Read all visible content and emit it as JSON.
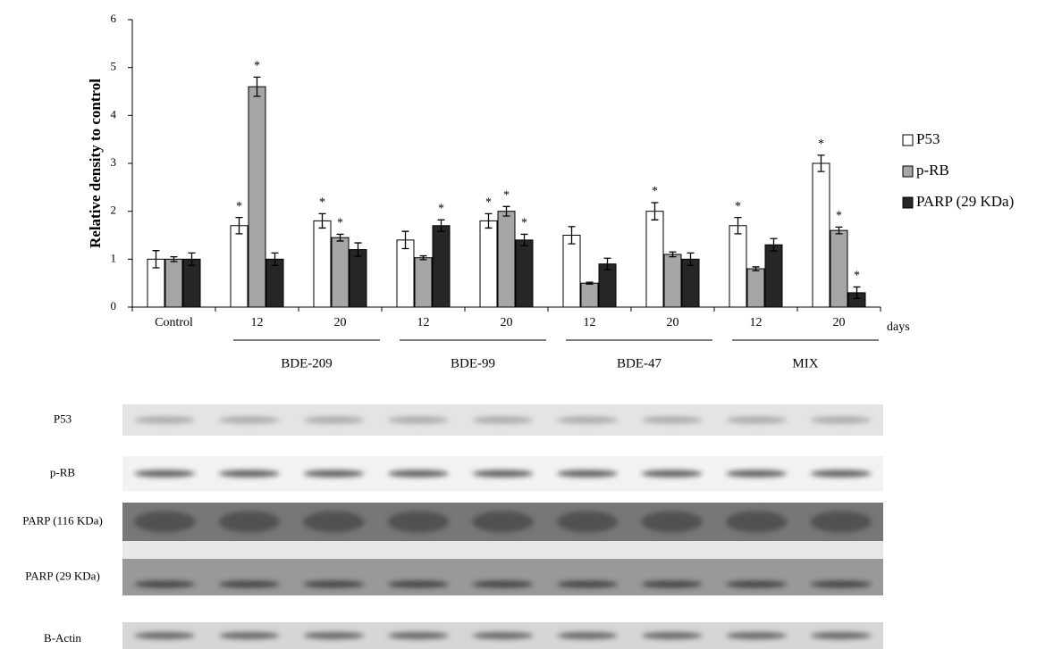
{
  "chart_data": {
    "type": "bar",
    "y_label": "Relative density to control",
    "x_unit": "days",
    "categories": [
      "Control",
      "12",
      "20",
      "12",
      "20",
      "12",
      "20",
      "12",
      "20"
    ],
    "groups": [
      null,
      "BDE-209",
      "BDE-209",
      "BDE-99",
      "BDE-99",
      "BDE-47",
      "BDE-47",
      "MIX",
      "MIX"
    ],
    "ylim": [
      0,
      6
    ],
    "yticks": [
      0,
      1,
      2,
      3,
      4,
      5,
      6
    ],
    "legend": "right",
    "series": [
      {
        "name": "P53",
        "color": "#ffffff",
        "values": [
          1.0,
          1.7,
          1.8,
          1.4,
          1.8,
          1.5,
          2.0,
          1.7,
          3.0
        ],
        "errors": [
          0.18,
          0.17,
          0.15,
          0.18,
          0.15,
          0.18,
          0.18,
          0.17,
          0.17
        ],
        "markers": [
          null,
          "*",
          "*",
          null,
          "*",
          null,
          "*",
          "*",
          "*"
        ]
      },
      {
        "name": "p-RB",
        "color": "#a6a6a6",
        "values": [
          1.0,
          4.6,
          1.45,
          1.03,
          2.0,
          0.5,
          1.1,
          0.8,
          1.6
        ],
        "errors": [
          0.05,
          0.2,
          0.07,
          0.04,
          0.1,
          0.02,
          0.05,
          0.04,
          0.07
        ],
        "markers": [
          null,
          "*",
          "*",
          null,
          "*",
          null,
          null,
          null,
          "*"
        ]
      },
      {
        "name": "PARP (29 KDa)",
        "color": "#262626",
        "values": [
          1.0,
          1.0,
          1.2,
          1.7,
          1.4,
          0.9,
          1.0,
          1.3,
          0.3
        ],
        "errors": [
          0.13,
          0.13,
          0.14,
          0.12,
          0.12,
          0.12,
          0.13,
          0.13,
          0.12
        ],
        "markers": [
          null,
          null,
          null,
          "*",
          "*",
          null,
          null,
          null,
          "*"
        ]
      }
    ]
  },
  "blot": {
    "rows": [
      "P53",
      "p-RB",
      "PARP (116 KDa)",
      "PARP (29 KDa)",
      "B-Actin"
    ]
  }
}
